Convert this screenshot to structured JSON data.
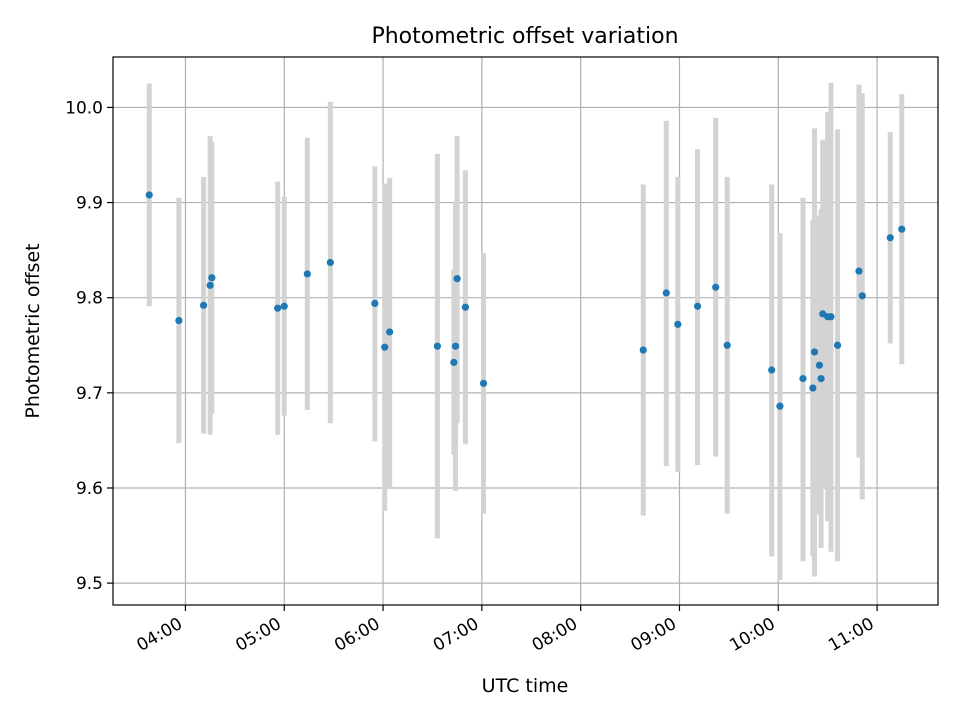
{
  "chart_data": {
    "type": "scatter",
    "title": "Photometric offset variation",
    "xlabel": "UTC time",
    "ylabel": "Photometric offset",
    "x_unit": "UTC time (HH:MM)",
    "xlim": [
      "03:16",
      "11:37"
    ],
    "ylim": [
      9.477,
      10.053
    ],
    "grid": true,
    "x_ticks": [
      "04:00",
      "05:00",
      "06:00",
      "07:00",
      "08:00",
      "09:00",
      "10:00",
      "11:00"
    ],
    "y_ticks": [
      9.5,
      9.6,
      9.7,
      9.8,
      9.9,
      10.0
    ],
    "y_tick_labels": [
      "9.5",
      "9.6",
      "9.7",
      "9.8",
      "9.9",
      "10.0"
    ],
    "colors": {
      "point": "#1f77b4",
      "errorbar": "#d3d3d3",
      "grid": "#b0b0b0"
    },
    "points": [
      {
        "x": "03:38",
        "y": 9.908,
        "lo": 9.791,
        "hi": 10.025
      },
      {
        "x": "03:56",
        "y": 9.776,
        "lo": 9.647,
        "hi": 9.905
      },
      {
        "x": "04:11",
        "y": 9.792,
        "lo": 9.657,
        "hi": 9.927
      },
      {
        "x": "04:15",
        "y": 9.813,
        "lo": 9.656,
        "hi": 9.97
      },
      {
        "x": "04:16",
        "y": 9.821,
        "lo": 9.678,
        "hi": 9.964
      },
      {
        "x": "04:56",
        "y": 9.789,
        "lo": 9.656,
        "hi": 9.922
      },
      {
        "x": "05:00",
        "y": 9.791,
        "lo": 9.676,
        "hi": 9.906
      },
      {
        "x": "05:14",
        "y": 9.825,
        "lo": 9.682,
        "hi": 9.968
      },
      {
        "x": "05:28",
        "y": 9.837,
        "lo": 9.668,
        "hi": 10.006
      },
      {
        "x": "05:55",
        "y": 9.794,
        "lo": 9.649,
        "hi": 9.938
      },
      {
        "x": "06:01",
        "y": 9.748,
        "lo": 9.576,
        "hi": 9.92
      },
      {
        "x": "06:04",
        "y": 9.764,
        "lo": 9.601,
        "hi": 9.926
      },
      {
        "x": "06:33",
        "y": 9.749,
        "lo": 9.547,
        "hi": 9.951
      },
      {
        "x": "06:43",
        "y": 9.732,
        "lo": 9.635,
        "hi": 9.83
      },
      {
        "x": "06:44",
        "y": 9.749,
        "lo": 9.597,
        "hi": 9.901
      },
      {
        "x": "06:45",
        "y": 9.82,
        "lo": 9.668,
        "hi": 9.97
      },
      {
        "x": "06:50",
        "y": 9.79,
        "lo": 9.646,
        "hi": 9.934
      },
      {
        "x": "07:01",
        "y": 9.71,
        "lo": 9.573,
        "hi": 9.847
      },
      {
        "x": "08:38",
        "y": 9.745,
        "lo": 9.571,
        "hi": 9.919
      },
      {
        "x": "08:52",
        "y": 9.805,
        "lo": 9.623,
        "hi": 9.986
      },
      {
        "x": "08:59",
        "y": 9.772,
        "lo": 9.617,
        "hi": 9.927
      },
      {
        "x": "09:11",
        "y": 9.791,
        "lo": 9.624,
        "hi": 9.956
      },
      {
        "x": "09:22",
        "y": 9.811,
        "lo": 9.633,
        "hi": 9.989
      },
      {
        "x": "09:29",
        "y": 9.75,
        "lo": 9.573,
        "hi": 9.927
      },
      {
        "x": "09:56",
        "y": 9.724,
        "lo": 9.528,
        "hi": 9.919
      },
      {
        "x": "10:01",
        "y": 9.686,
        "lo": 9.503,
        "hi": 9.868
      },
      {
        "x": "10:15",
        "y": 9.715,
        "lo": 9.523,
        "hi": 9.905
      },
      {
        "x": "10:21",
        "y": 9.705,
        "lo": 9.528,
        "hi": 9.882
      },
      {
        "x": "10:22",
        "y": 9.743,
        "lo": 9.507,
        "hi": 9.978
      },
      {
        "x": "10:25",
        "y": 9.729,
        "lo": 9.572,
        "hi": 9.886
      },
      {
        "x": "10:26",
        "y": 9.715,
        "lo": 9.537,
        "hi": 9.893
      },
      {
        "x": "10:27",
        "y": 9.783,
        "lo": 9.6,
        "hi": 9.966
      },
      {
        "x": "10:30",
        "y": 9.78,
        "lo": 9.565,
        "hi": 9.995
      },
      {
        "x": "10:32",
        "y": 9.78,
        "lo": 9.533,
        "hi": 10.026
      },
      {
        "x": "10:36",
        "y": 9.75,
        "lo": 9.523,
        "hi": 9.977
      },
      {
        "x": "10:49",
        "y": 9.828,
        "lo": 9.632,
        "hi": 10.024
      },
      {
        "x": "10:51",
        "y": 9.802,
        "lo": 9.588,
        "hi": 10.015
      },
      {
        "x": "11:08",
        "y": 9.863,
        "lo": 9.752,
        "hi": 9.974
      },
      {
        "x": "11:15",
        "y": 9.872,
        "lo": 9.73,
        "hi": 10.014
      }
    ]
  }
}
